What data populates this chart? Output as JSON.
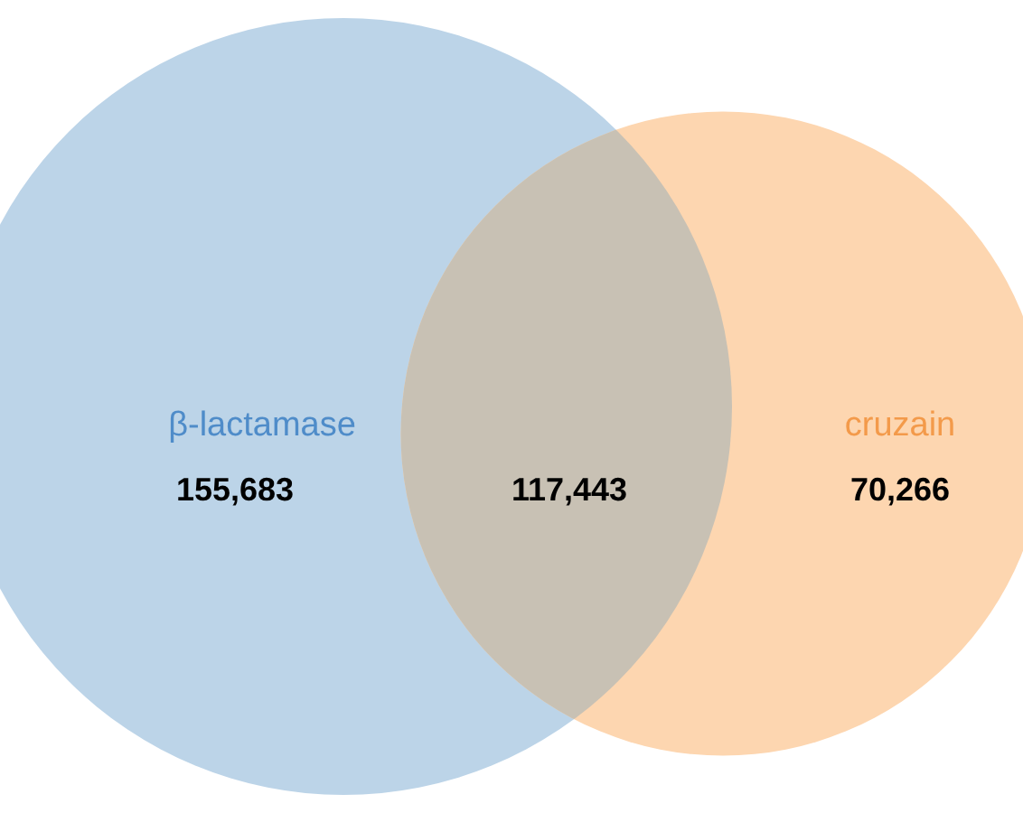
{
  "chart_data": {
    "type": "other",
    "categories": [
      "β-lactamase",
      null,
      "cruzain"
    ],
    "values": [
      155683,
      117443,
      70266
    ],
    "colors": [
      "#bcd4e8",
      "#c8c1b4",
      "#fdd6b0"
    ],
    "value_labels": [
      "155,683",
      "117,443",
      "70,266"
    ]
  }
}
